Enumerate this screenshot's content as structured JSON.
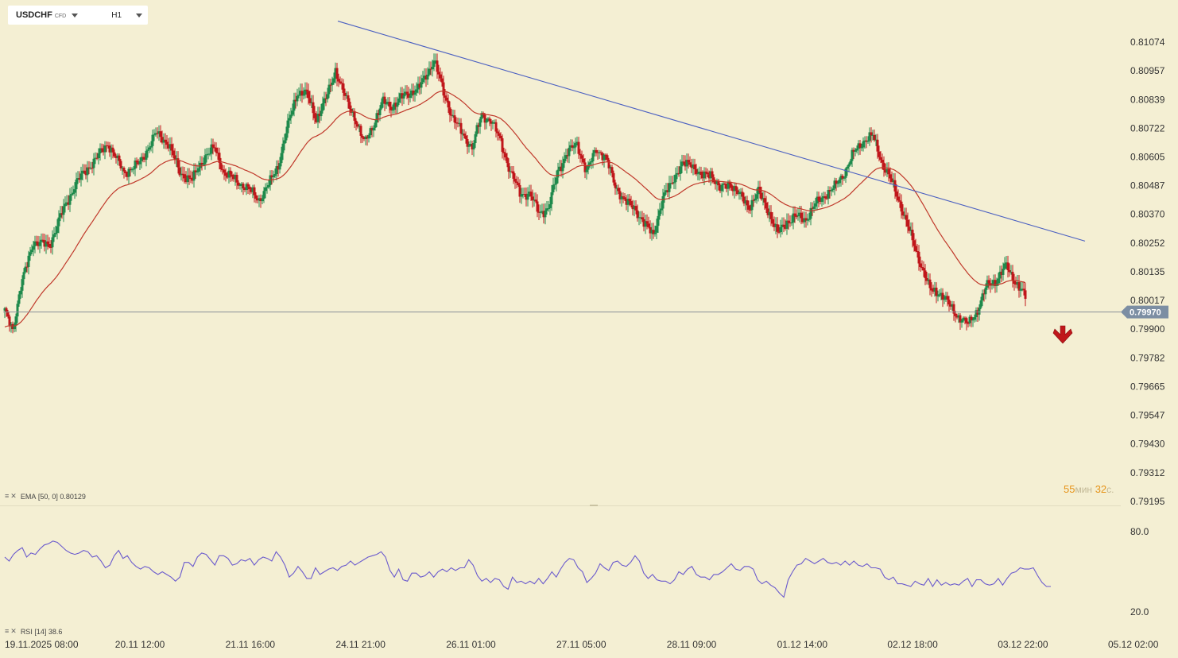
{
  "toolbar": {
    "symbol": "USDCHF",
    "symbol_tag": "CFD",
    "timeframe": "H1"
  },
  "indicators": {
    "ema_label": "EMA",
    "ema_params": "[50, 0]",
    "ema_value": "0.80129",
    "rsi_label": "RSI",
    "rsi_params": "[14]",
    "rsi_value": "38.6"
  },
  "timer": {
    "minutes": "55",
    "minutes_unit": "мин",
    "seconds": "32",
    "seconds_unit": "с."
  },
  "colors": {
    "background": "#f4efd3",
    "bull": "#1f8a4c",
    "bear": "#c0171b",
    "ema": "#c0392b",
    "trendline": "#4a5fc1",
    "rsi": "#6a5acd",
    "price_tag": "#7c8ea3",
    "signal_arrow": "#c0171b"
  },
  "chart_data": {
    "type": "candlestick",
    "symbol": "USDCHF",
    "timeframe": "H1",
    "price_axis": {
      "ticks": [
        "0.81074",
        "0.80957",
        "0.80839",
        "0.80722",
        "0.80605",
        "0.80487",
        "0.80370",
        "0.80252",
        "0.80135",
        "0.80017",
        "0.79900",
        "0.79782",
        "0.79665",
        "0.79547",
        "0.79430",
        "0.79312",
        "0.79195"
      ],
      "range": [
        0.79195,
        0.81074
      ]
    },
    "time_axis": {
      "ticks": [
        "19.11.2025  08:00",
        "20.11  12:00",
        "21.11  16:00",
        "24.11  21:00",
        "26.11  01:00",
        "27.11  05:00",
        "28.11  09:00",
        "01.12  14:00",
        "02.12  18:00",
        "03.12  22:00",
        "05.12  02:00"
      ]
    },
    "current_price": "0.79970",
    "current_price_value": 0.7997,
    "close_path": [
      [
        0,
        0.7997
      ],
      [
        5,
        0.799
      ],
      [
        10,
        0.8007
      ],
      [
        18,
        0.8026
      ],
      [
        28,
        0.8024
      ],
      [
        35,
        0.8036
      ],
      [
        45,
        0.805
      ],
      [
        55,
        0.8058
      ],
      [
        65,
        0.8066
      ],
      [
        75,
        0.8054
      ],
      [
        85,
        0.8058
      ],
      [
        95,
        0.807
      ],
      [
        103,
        0.8066
      ],
      [
        110,
        0.8054
      ],
      [
        118,
        0.8051
      ],
      [
        126,
        0.8061
      ],
      [
        132,
        0.8064
      ],
      [
        138,
        0.8054
      ],
      [
        145,
        0.8051
      ],
      [
        152,
        0.8048
      ],
      [
        160,
        0.8043
      ],
      [
        166,
        0.8049
      ],
      [
        172,
        0.8057
      ],
      [
        178,
        0.8073
      ],
      [
        184,
        0.8087
      ],
      [
        190,
        0.8086
      ],
      [
        196,
        0.8076
      ],
      [
        202,
        0.8084
      ],
      [
        208,
        0.8096
      ],
      [
        214,
        0.8085
      ],
      [
        220,
        0.8077
      ],
      [
        226,
        0.8066
      ],
      [
        232,
        0.8074
      ],
      [
        238,
        0.8083
      ],
      [
        244,
        0.8081
      ],
      [
        252,
        0.8086
      ],
      [
        260,
        0.8088
      ],
      [
        266,
        0.8095
      ],
      [
        270,
        0.81
      ],
      [
        276,
        0.8087
      ],
      [
        282,
        0.8076
      ],
      [
        288,
        0.807
      ],
      [
        294,
        0.8064
      ],
      [
        300,
        0.8078
      ],
      [
        306,
        0.8075
      ],
      [
        312,
        0.8067
      ],
      [
        318,
        0.8054
      ],
      [
        324,
        0.8046
      ],
      [
        330,
        0.8045
      ],
      [
        336,
        0.8038
      ],
      [
        342,
        0.8039
      ],
      [
        348,
        0.8055
      ],
      [
        354,
        0.8062
      ],
      [
        360,
        0.8066
      ],
      [
        366,
        0.8054
      ],
      [
        372,
        0.8064
      ],
      [
        378,
        0.806
      ],
      [
        384,
        0.8049
      ],
      [
        390,
        0.8042
      ],
      [
        396,
        0.804
      ],
      [
        402,
        0.8033
      ],
      [
        408,
        0.8029
      ],
      [
        414,
        0.8043
      ],
      [
        420,
        0.8051
      ],
      [
        426,
        0.8057
      ],
      [
        432,
        0.8058
      ],
      [
        438,
        0.8052
      ],
      [
        444,
        0.8054
      ],
      [
        450,
        0.8047
      ],
      [
        456,
        0.805
      ],
      [
        462,
        0.8045
      ],
      [
        468,
        0.804
      ],
      [
        474,
        0.8046
      ],
      [
        480,
        0.8039
      ],
      [
        486,
        0.8029
      ],
      [
        492,
        0.8034
      ],
      [
        498,
        0.8036
      ],
      [
        504,
        0.8035
      ],
      [
        510,
        0.8041
      ],
      [
        516,
        0.8045
      ],
      [
        522,
        0.8048
      ],
      [
        528,
        0.8054
      ],
      [
        534,
        0.8062
      ],
      [
        540,
        0.8067
      ],
      [
        546,
        0.8069
      ],
      [
        552,
        0.8058
      ],
      [
        558,
        0.805
      ],
      [
        564,
        0.804
      ],
      [
        570,
        0.8028
      ],
      [
        576,
        0.8017
      ],
      [
        582,
        0.8006
      ],
      [
        588,
        0.8005
      ],
      [
        594,
        0.8
      ],
      [
        600,
        0.7995
      ],
      [
        606,
        0.7992
      ],
      [
        612,
        0.7998
      ],
      [
        618,
        0.8008
      ],
      [
        624,
        0.801
      ],
      [
        630,
        0.8016
      ],
      [
        636,
        0.8009
      ],
      [
        642,
        0.8003
      ]
    ],
    "ema": {
      "period": 50,
      "value": 0.80129
    },
    "trendline": {
      "from": [
        425,
        0.8116
      ],
      "to": [
        1365,
        0.8026
      ]
    },
    "signal": "down",
    "rsi": {
      "period": 14,
      "value": 38.6,
      "axis_ticks": [
        "80.0",
        "20.0"
      ],
      "range": [
        20,
        80
      ],
      "points": [
        61,
        58,
        63,
        66,
        68,
        61,
        64,
        63,
        67,
        70,
        71,
        73,
        72,
        69,
        66,
        64,
        63,
        64,
        66,
        65,
        61,
        62,
        58,
        53,
        55,
        62,
        66,
        60,
        62,
        57,
        54,
        52,
        54,
        53,
        50,
        48,
        50,
        48,
        46,
        43,
        46,
        57,
        57,
        54,
        61,
        64,
        63,
        59,
        55,
        62,
        62,
        60,
        55,
        56,
        59,
        58,
        60,
        55,
        59,
        61,
        60,
        58,
        65,
        61,
        55,
        46,
        49,
        54,
        50,
        45,
        45,
        53,
        48,
        50,
        52,
        53,
        51,
        54,
        55,
        58,
        55,
        57,
        59,
        61,
        62,
        63,
        65,
        61,
        51,
        46,
        52,
        44,
        43,
        49,
        49,
        46,
        47,
        50,
        46,
        50,
        52,
        50,
        53,
        51,
        53,
        53,
        59,
        55,
        47,
        43,
        45,
        42,
        45,
        44,
        39,
        37,
        46,
        42,
        43,
        41,
        43,
        41,
        45,
        41,
        45,
        50,
        46,
        52,
        57,
        60,
        59,
        53,
        50,
        42,
        45,
        49,
        56,
        53,
        51,
        57,
        58,
        55,
        54,
        57,
        62,
        58,
        49,
        45,
        48,
        44,
        43,
        43,
        41,
        44,
        50,
        48,
        52,
        54,
        48,
        46,
        46,
        44,
        48,
        48,
        50,
        53,
        56,
        52,
        51,
        54,
        54,
        52,
        44,
        41,
        43,
        40,
        38,
        34,
        31,
        44,
        50,
        55,
        56,
        60,
        58,
        56,
        58,
        60,
        57,
        56,
        57,
        55,
        58,
        55,
        58,
        55,
        54,
        56,
        53,
        53,
        52,
        46,
        44,
        46,
        41,
        41,
        40,
        39,
        43,
        41,
        40,
        45,
        39,
        44,
        40,
        42,
        40,
        41,
        40,
        43,
        45,
        39,
        44,
        44,
        41,
        40,
        41,
        45,
        40,
        45,
        49,
        50,
        53,
        52,
        52,
        53,
        47,
        42,
        39,
        39
      ]
    }
  }
}
